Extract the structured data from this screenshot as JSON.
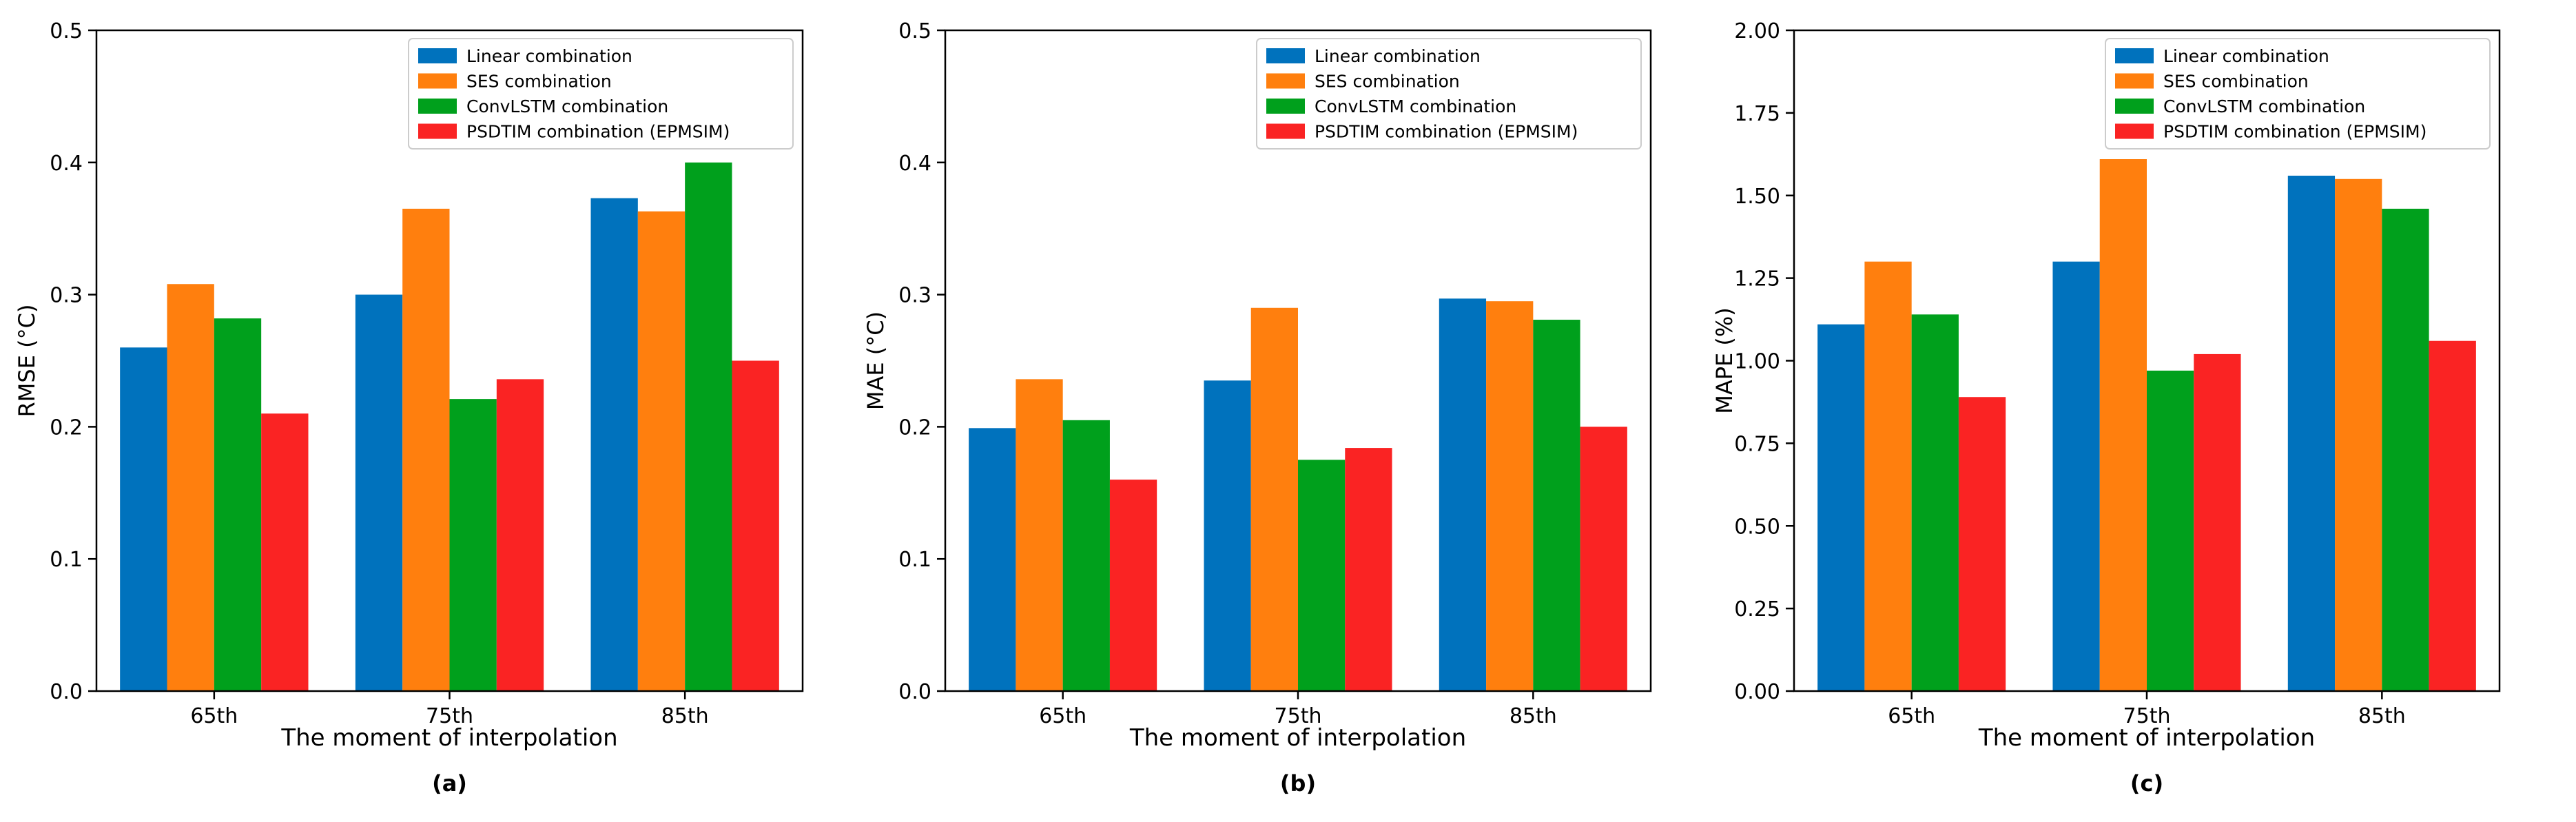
{
  "colors": {
    "Linear combination": "#0072bd",
    "SES combination": "#ff7f0e",
    "ConvLSTM combination": "#00a01c",
    "PSDTIM combination (EPMSIM)": "#fa2323"
  },
  "chart_data": [
    {
      "type": "bar",
      "panel_label": "(a)",
      "title": "",
      "xlabel": "The moment of interpolation",
      "ylabel": "RMSE (°C)",
      "categories": [
        "65th",
        "75th",
        "85th"
      ],
      "ylim": [
        0,
        0.5
      ],
      "yticks": [
        "0.0",
        "0.1",
        "0.2",
        "0.3",
        "0.4",
        "0.5"
      ],
      "grid": false,
      "legend_position": "top-right",
      "series": [
        {
          "name": "Linear combination",
          "values": [
            0.26,
            0.3,
            0.373
          ]
        },
        {
          "name": "SES combination",
          "values": [
            0.308,
            0.365,
            0.363
          ]
        },
        {
          "name": "ConvLSTM combination",
          "values": [
            0.282,
            0.221,
            0.4
          ]
        },
        {
          "name": "PSDTIM combination (EPMSIM)",
          "values": [
            0.21,
            0.236,
            0.25
          ]
        }
      ]
    },
    {
      "type": "bar",
      "panel_label": "(b)",
      "title": "",
      "xlabel": "The moment of interpolation",
      "ylabel": "MAE (°C)",
      "categories": [
        "65th",
        "75th",
        "85th"
      ],
      "ylim": [
        0,
        0.5
      ],
      "yticks": [
        "0.0",
        "0.1",
        "0.2",
        "0.3",
        "0.4",
        "0.5"
      ],
      "grid": false,
      "legend_position": "top-right",
      "series": [
        {
          "name": "Linear combination",
          "values": [
            0.199,
            0.235,
            0.297
          ]
        },
        {
          "name": "SES combination",
          "values": [
            0.236,
            0.29,
            0.295
          ]
        },
        {
          "name": "ConvLSTM combination",
          "values": [
            0.205,
            0.175,
            0.281
          ]
        },
        {
          "name": "PSDTIM combination (EPMSIM)",
          "values": [
            0.16,
            0.184,
            0.2
          ]
        }
      ]
    },
    {
      "type": "bar",
      "panel_label": "(c)",
      "title": "",
      "xlabel": "The moment of interpolation",
      "ylabel": "MAPE (%)",
      "categories": [
        "65th",
        "75th",
        "85th"
      ],
      "ylim": [
        0,
        2.0
      ],
      "yticks": [
        "0.00",
        "0.25",
        "0.50",
        "0.75",
        "1.00",
        "1.25",
        "1.50",
        "1.75",
        "2.00"
      ],
      "grid": false,
      "legend_position": "top-right",
      "series": [
        {
          "name": "Linear combination",
          "values": [
            1.11,
            1.3,
            1.56
          ]
        },
        {
          "name": "SES combination",
          "values": [
            1.3,
            1.61,
            1.55
          ]
        },
        {
          "name": "ConvLSTM combination",
          "values": [
            1.14,
            0.97,
            1.46
          ]
        },
        {
          "name": "PSDTIM combination (EPMSIM)",
          "values": [
            0.89,
            1.02,
            1.06
          ]
        }
      ]
    }
  ]
}
